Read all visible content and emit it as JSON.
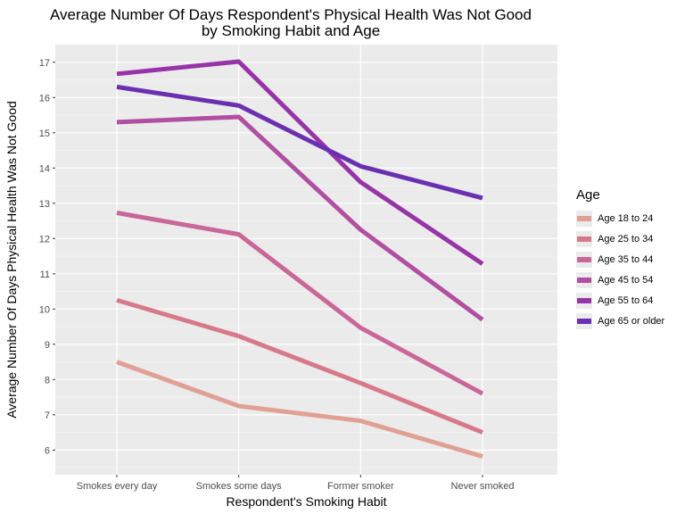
{
  "chart_data": {
    "type": "line",
    "title": "Average Number Of Days Respondent's Physical Health Was Not Good",
    "subtitle": "by Smoking Habit and Age",
    "xlabel": "Respondent's Smoking Habit",
    "ylabel": "Average Number Of Days Physical Health Was Not Good",
    "categories": [
      "Smokes every day",
      "Smokes some days",
      "Former smoker",
      "Never smoked"
    ],
    "ylim": [
      5.3,
      17.5
    ],
    "yticks": [
      6,
      7,
      8,
      9,
      10,
      11,
      12,
      13,
      14,
      15,
      16,
      17
    ],
    "grid": true,
    "legend_position": "right",
    "legend_title": "Age",
    "series": [
      {
        "name": "Age 18 to 24",
        "color": "#e0a096",
        "values": [
          8.5,
          7.25,
          6.83,
          5.82
        ]
      },
      {
        "name": "Age 25 to 34",
        "color": "#d7798a",
        "values": [
          10.25,
          9.23,
          7.9,
          6.5
        ]
      },
      {
        "name": "Age 35 to 44",
        "color": "#c9679a",
        "values": [
          12.73,
          12.12,
          9.47,
          7.6
        ]
      },
      {
        "name": "Age 45 to 54",
        "color": "#b14fa2",
        "values": [
          15.3,
          15.45,
          12.25,
          9.7
        ]
      },
      {
        "name": "Age 55 to 64",
        "color": "#9634a8",
        "values": [
          16.67,
          17.02,
          13.6,
          11.28
        ]
      },
      {
        "name": "Age 65 or older",
        "color": "#6a30b0",
        "values": [
          16.3,
          15.77,
          14.05,
          13.15
        ]
      }
    ]
  }
}
